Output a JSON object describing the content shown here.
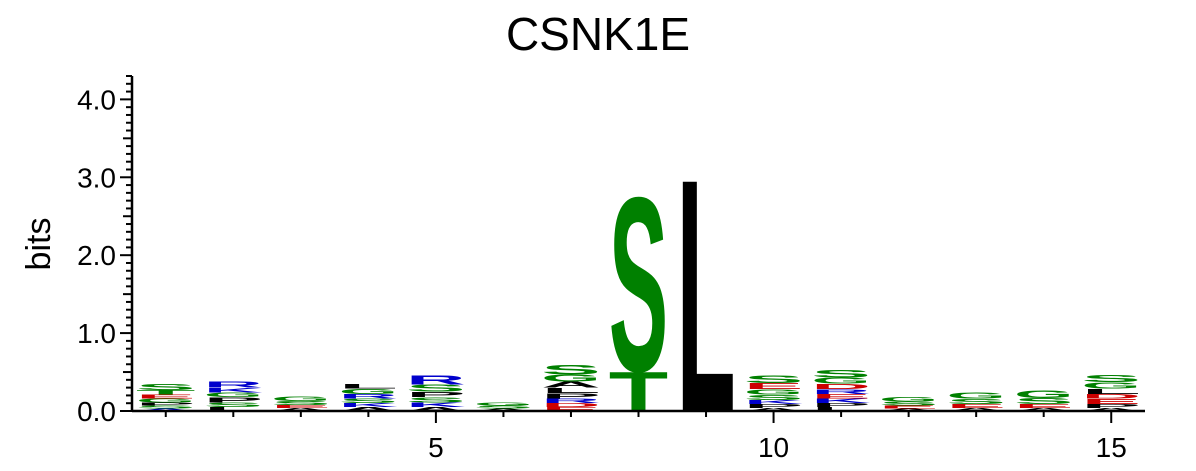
{
  "chart_data": {
    "type": "sequence-logo",
    "title": "CSNK1E",
    "xlabel": "",
    "ylabel": "bits",
    "ylim": [
      0,
      4.3
    ],
    "xlim": [
      0.5,
      15.5
    ],
    "y_ticks": [
      0.0,
      1.0,
      2.0,
      3.0,
      4.0
    ],
    "y_tick_labels": [
      "0.0",
      "1.0",
      "2.0",
      "3.0",
      "4.0"
    ],
    "x_ticks": [
      5,
      10,
      15
    ],
    "x_tick_labels": [
      "5",
      "10",
      "15"
    ],
    "colors": {
      "green": "#008000",
      "black": "#000000",
      "blue": "#0000cc",
      "red": "#cc0000"
    },
    "positions": [
      {
        "pos": 1,
        "letters": [
          {
            "l": "A",
            "h": 0.03,
            "c": "#0000cc"
          },
          {
            "l": "S",
            "h": 0.04,
            "c": "#008000"
          },
          {
            "l": "P",
            "h": 0.04,
            "c": "#000000"
          },
          {
            "l": "G",
            "h": 0.05,
            "c": "#008000"
          },
          {
            "l": "E",
            "h": 0.05,
            "c": "#cc0000"
          },
          {
            "l": "T",
            "h": 0.06,
            "c": "#008000"
          },
          {
            "l": "S",
            "h": 0.08,
            "c": "#008000"
          }
        ]
      },
      {
        "pos": 2,
        "letters": [
          {
            "l": "L",
            "h": 0.05,
            "c": "#000000"
          },
          {
            "l": "S",
            "h": 0.06,
            "c": "#008000"
          },
          {
            "l": "P",
            "h": 0.07,
            "c": "#000000"
          },
          {
            "l": "G",
            "h": 0.06,
            "c": "#008000"
          },
          {
            "l": "K",
            "h": 0.06,
            "c": "#0000cc"
          },
          {
            "l": "R",
            "h": 0.08,
            "c": "#0000cc"
          }
        ]
      },
      {
        "pos": 3,
        "letters": [
          {
            "l": "A",
            "h": 0.04,
            "c": "#000000"
          },
          {
            "l": "E",
            "h": 0.04,
            "c": "#cc0000"
          },
          {
            "l": "S",
            "h": 0.05,
            "c": "#008000"
          },
          {
            "l": "G",
            "h": 0.06,
            "c": "#008000"
          }
        ]
      },
      {
        "pos": 4,
        "letters": [
          {
            "l": "A",
            "h": 0.05,
            "c": "#000000"
          },
          {
            "l": "K",
            "h": 0.05,
            "c": "#0000cc"
          },
          {
            "l": "S",
            "h": 0.06,
            "c": "#008000"
          },
          {
            "l": "R",
            "h": 0.06,
            "c": "#0000cc"
          },
          {
            "l": "G",
            "h": 0.07,
            "c": "#008000"
          },
          {
            "l": "L",
            "h": 0.06,
            "c": "#000000"
          }
        ]
      },
      {
        "pos": 5,
        "letters": [
          {
            "l": "A",
            "h": 0.05,
            "c": "#000000"
          },
          {
            "l": "K",
            "h": 0.06,
            "c": "#0000cc"
          },
          {
            "l": "S",
            "h": 0.07,
            "c": "#008000"
          },
          {
            "l": "P",
            "h": 0.07,
            "c": "#000000"
          },
          {
            "l": "S",
            "h": 0.09,
            "c": "#008000"
          },
          {
            "l": "R",
            "h": 0.12,
            "c": "#0000cc"
          }
        ]
      },
      {
        "pos": 6,
        "letters": [
          {
            "l": "A",
            "h": 0.03,
            "c": "#000000"
          },
          {
            "l": "S",
            "h": 0.04,
            "c": "#008000"
          },
          {
            "l": "G",
            "h": 0.04,
            "c": "#008000"
          }
        ]
      },
      {
        "pos": 7,
        "letters": [
          {
            "l": "E",
            "h": 0.05,
            "c": "#cc0000"
          },
          {
            "l": "D",
            "h": 0.05,
            "c": "#cc0000"
          },
          {
            "l": "R",
            "h": 0.06,
            "c": "#0000cc"
          },
          {
            "l": "P",
            "h": 0.07,
            "c": "#000000"
          },
          {
            "l": "L",
            "h": 0.07,
            "c": "#000000"
          },
          {
            "l": "A",
            "h": 0.08,
            "c": "#000000"
          },
          {
            "l": "G",
            "h": 0.09,
            "c": "#008000"
          },
          {
            "l": "S",
            "h": 0.13,
            "c": "#008000"
          }
        ]
      },
      {
        "pos": 8,
        "letters": [
          {
            "l": "T",
            "h": 0.52,
            "c": "#008000"
          },
          {
            "l": "S",
            "h": 2.3,
            "c": "#008000"
          }
        ]
      },
      {
        "pos": 9,
        "letters": [
          {
            "l": "L",
            "h": 3.08,
            "c": "#000000"
          }
        ]
      },
      {
        "pos": 10,
        "letters": [
          {
            "l": "A",
            "h": 0.04,
            "c": "#000000"
          },
          {
            "l": "P",
            "h": 0.05,
            "c": "#000000"
          },
          {
            "l": "K",
            "h": 0.05,
            "c": "#0000cc"
          },
          {
            "l": "S",
            "h": 0.07,
            "c": "#008000"
          },
          {
            "l": "G",
            "h": 0.07,
            "c": "#008000"
          },
          {
            "l": "E",
            "h": 0.08,
            "c": "#cc0000"
          },
          {
            "l": "S",
            "h": 0.1,
            "c": "#008000"
          }
        ]
      },
      {
        "pos": 11,
        "letters": [
          {
            "l": "L",
            "h": 0.05,
            "c": "#000000"
          },
          {
            "l": "P",
            "h": 0.05,
            "c": "#000000"
          },
          {
            "l": "K",
            "h": 0.06,
            "c": "#0000cc"
          },
          {
            "l": "E",
            "h": 0.06,
            "c": "#cc0000"
          },
          {
            "l": "R",
            "h": 0.06,
            "c": "#0000cc"
          },
          {
            "l": "D",
            "h": 0.07,
            "c": "#cc0000"
          },
          {
            "l": "G",
            "h": 0.08,
            "c": "#008000"
          },
          {
            "l": "S",
            "h": 0.1,
            "c": "#008000"
          }
        ]
      },
      {
        "pos": 12,
        "letters": [
          {
            "l": "A",
            "h": 0.03,
            "c": "#000000"
          },
          {
            "l": "E",
            "h": 0.04,
            "c": "#cc0000"
          },
          {
            "l": "S",
            "h": 0.05,
            "c": "#008000"
          },
          {
            "l": "G",
            "h": 0.06,
            "c": "#008000"
          }
        ]
      },
      {
        "pos": 13,
        "letters": [
          {
            "l": "A",
            "h": 0.04,
            "c": "#000000"
          },
          {
            "l": "E",
            "h": 0.05,
            "c": "#cc0000"
          },
          {
            "l": "S",
            "h": 0.07,
            "c": "#008000"
          },
          {
            "l": "G",
            "h": 0.08,
            "c": "#008000"
          }
        ]
      },
      {
        "pos": 14,
        "letters": [
          {
            "l": "A",
            "h": 0.04,
            "c": "#000000"
          },
          {
            "l": "E",
            "h": 0.05,
            "c": "#cc0000"
          },
          {
            "l": "S",
            "h": 0.08,
            "c": "#008000"
          },
          {
            "l": "G",
            "h": 0.1,
            "c": "#008000"
          }
        ]
      },
      {
        "pos": 15,
        "letters": [
          {
            "l": "A",
            "h": 0.04,
            "c": "#000000"
          },
          {
            "l": "P",
            "h": 0.05,
            "c": "#000000"
          },
          {
            "l": "E",
            "h": 0.07,
            "c": "#cc0000"
          },
          {
            "l": "D",
            "h": 0.06,
            "c": "#cc0000"
          },
          {
            "l": "L",
            "h": 0.07,
            "c": "#000000"
          },
          {
            "l": "G",
            "h": 0.08,
            "c": "#008000"
          },
          {
            "l": "S",
            "h": 0.09,
            "c": "#008000"
          }
        ]
      }
    ]
  }
}
